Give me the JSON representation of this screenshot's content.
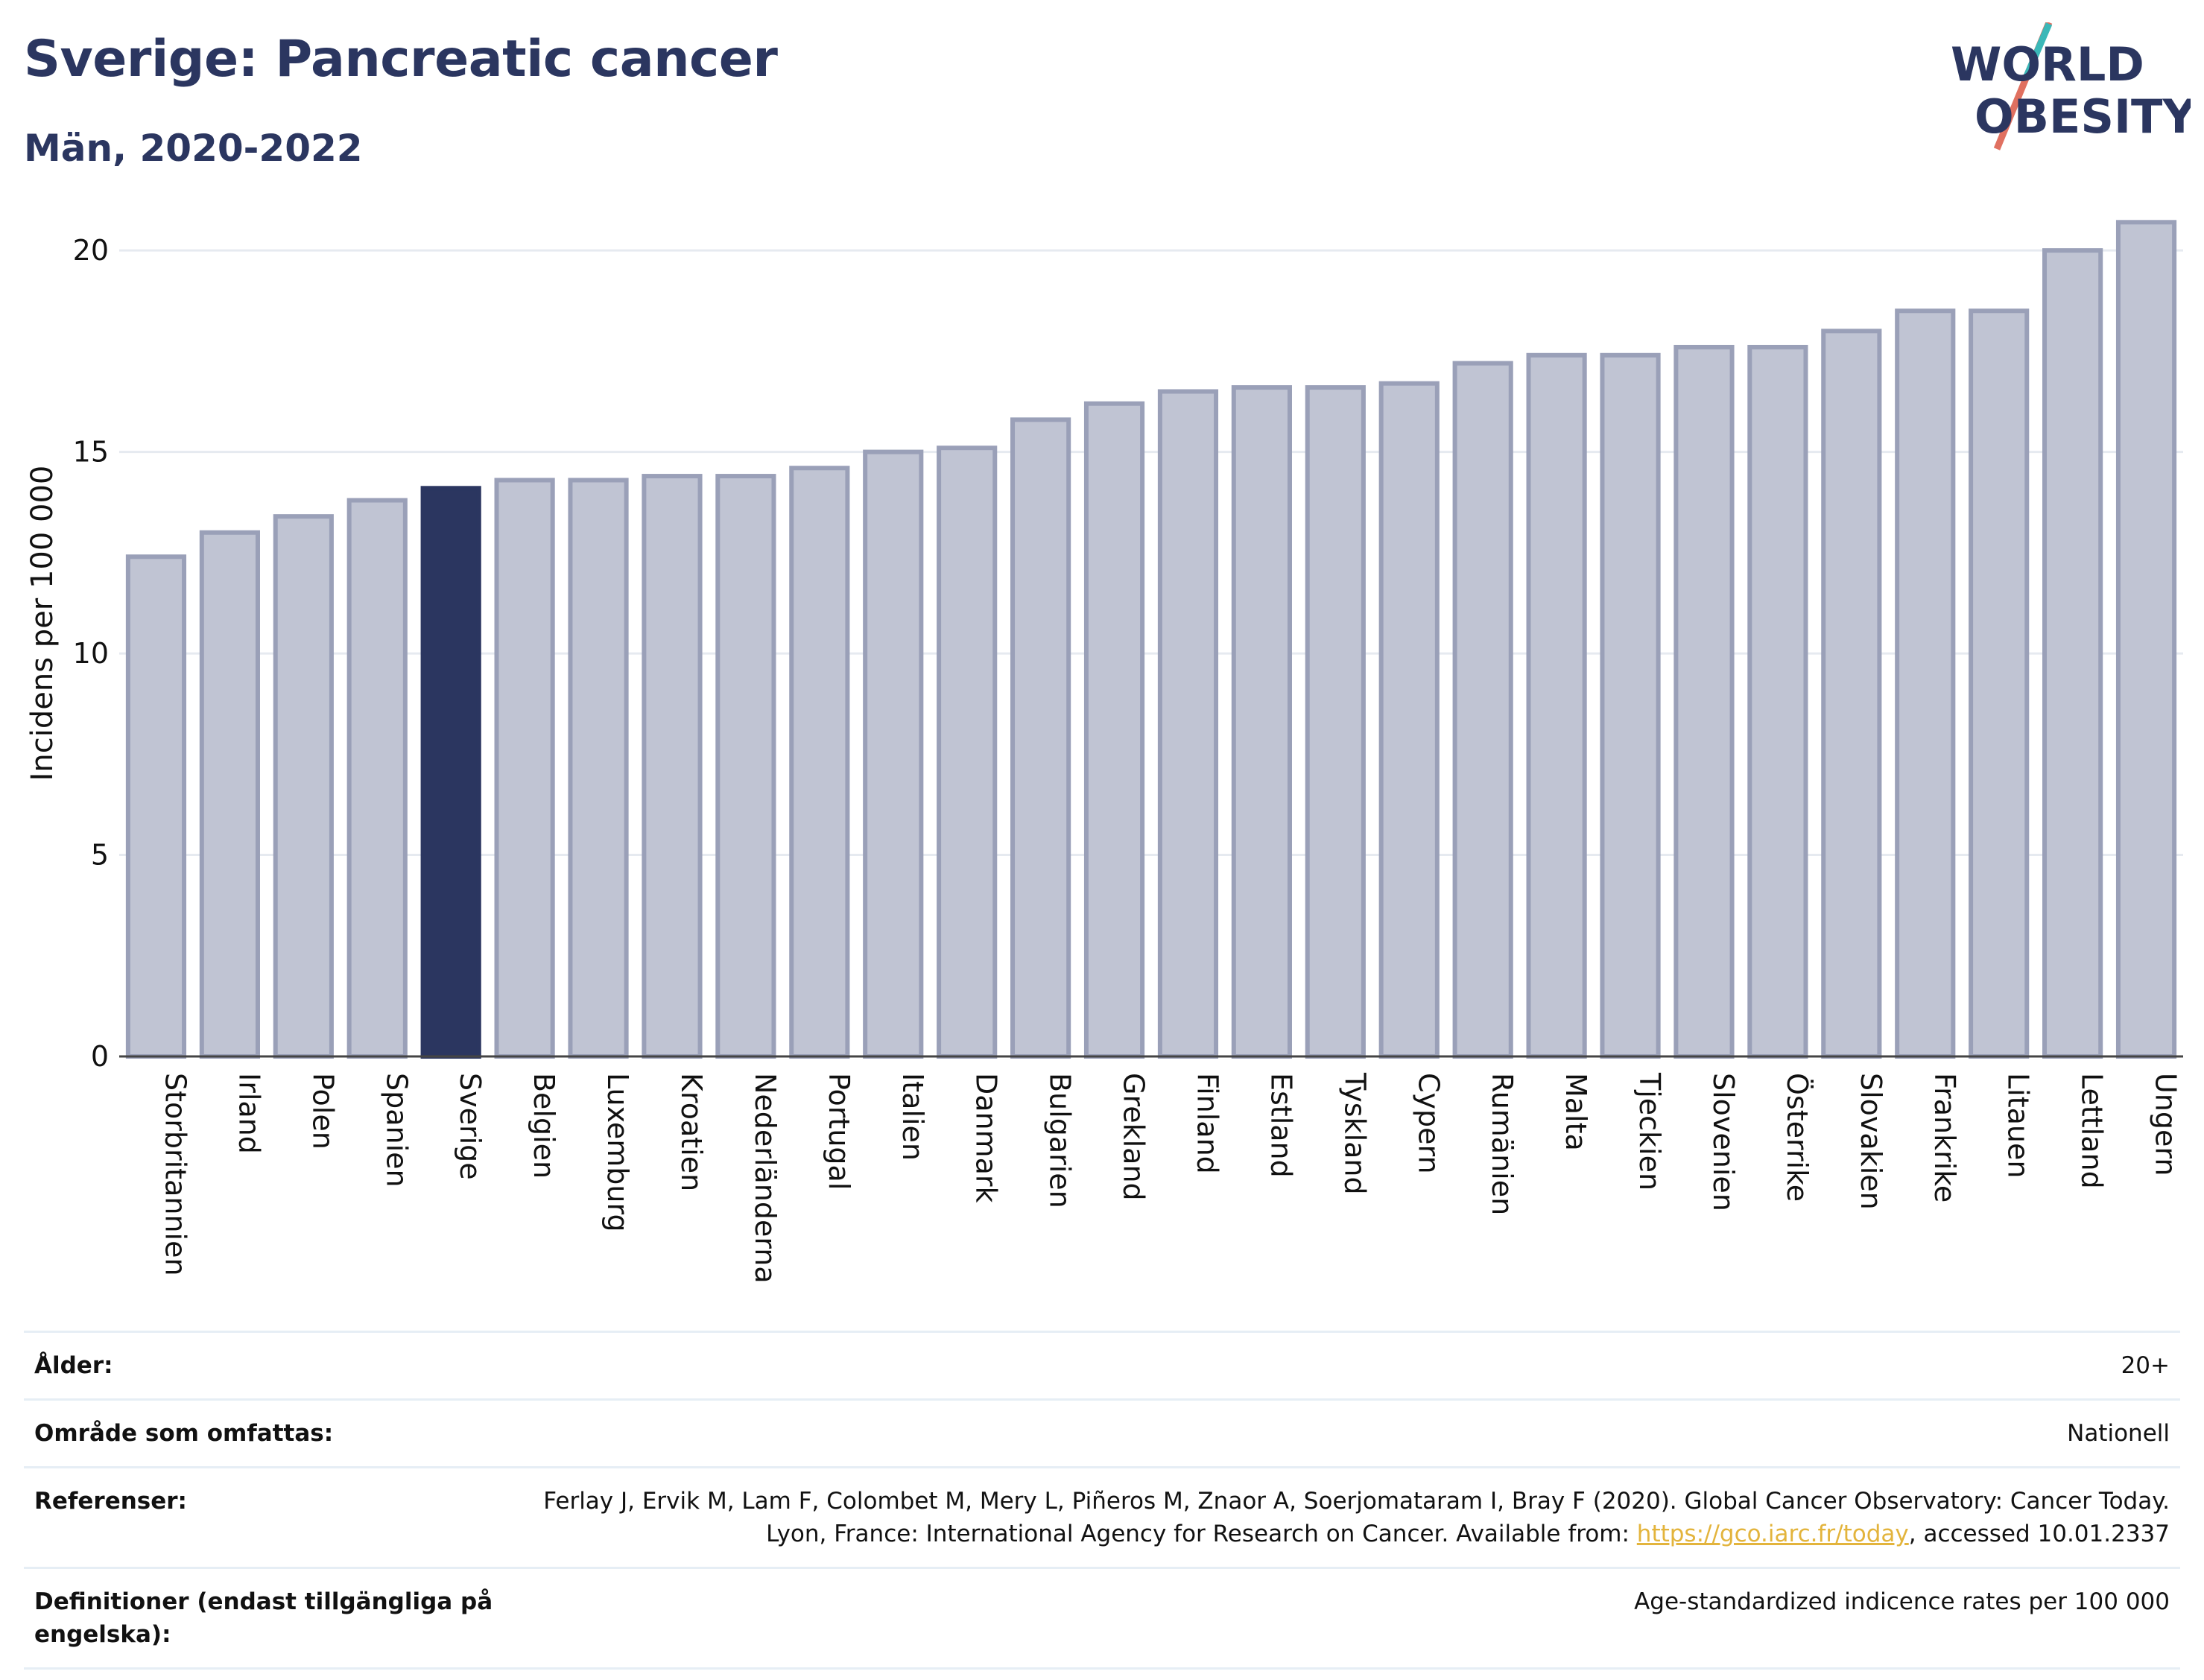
{
  "header": {
    "title": "Sverige: Pancreatic cancer",
    "subtitle": "Män, 2020-2022"
  },
  "logo": {
    "line1": "WORLD",
    "line2": "OBESITY"
  },
  "colors": {
    "title": "#2b3660",
    "bar": "#c0c4d3",
    "bar_stroke": "#9aa0b8",
    "highlight": "#2b3660",
    "grid": "#e6eaf0",
    "link": "#e3b43c"
  },
  "chart_data": {
    "type": "bar",
    "ylabel": "Incidens per 100 000",
    "ylim": [
      0,
      21.5
    ],
    "yticks": [
      0,
      5,
      10,
      15,
      20
    ],
    "grid": true,
    "highlight": "Sverige",
    "categories": [
      "Storbritannien",
      "Irland",
      "Polen",
      "Spanien",
      "Sverige",
      "Belgien",
      "Luxemburg",
      "Kroatien",
      "Nederländerna",
      "Portugal",
      "Italien",
      "Danmark",
      "Bulgarien",
      "Grekland",
      "Finland",
      "Estland",
      "Tyskland",
      "Cypern",
      "Rumänien",
      "Malta",
      "Tjeckien",
      "Slovenien",
      "Österrike",
      "Slovakien",
      "Frankrike",
      "Litauen",
      "Lettland",
      "Ungern"
    ],
    "values": [
      12.4,
      13.0,
      13.4,
      13.8,
      14.1,
      14.3,
      14.3,
      14.4,
      14.4,
      14.6,
      15.0,
      15.1,
      15.8,
      16.2,
      16.5,
      16.6,
      16.6,
      16.7,
      17.2,
      17.4,
      17.4,
      17.6,
      17.6,
      18.0,
      18.5,
      18.5,
      20.0,
      20.7
    ]
  },
  "meta": {
    "rows": [
      {
        "label": "Ålder:",
        "value": "20+"
      },
      {
        "label": "Område som omfattas:",
        "value": "Nationell"
      },
      {
        "label": "Referenser:",
        "value_pre": "Ferlay J, Ervik M, Lam F, Colombet M, Mery L, Piñeros M, Znaor A, Soerjomataram I, Bray F (2020). Global Cancer Observatory: Cancer Today. Lyon, France: International Agency for Research on Cancer. Available from: ",
        "link": "https://gco.iarc.fr/today",
        "value_post": ", accessed 10.01.2337"
      },
      {
        "label": "Definitioner (endast tillgängliga på engelska):",
        "value": "Age-standardized indicence rates per 100 000"
      }
    ]
  }
}
